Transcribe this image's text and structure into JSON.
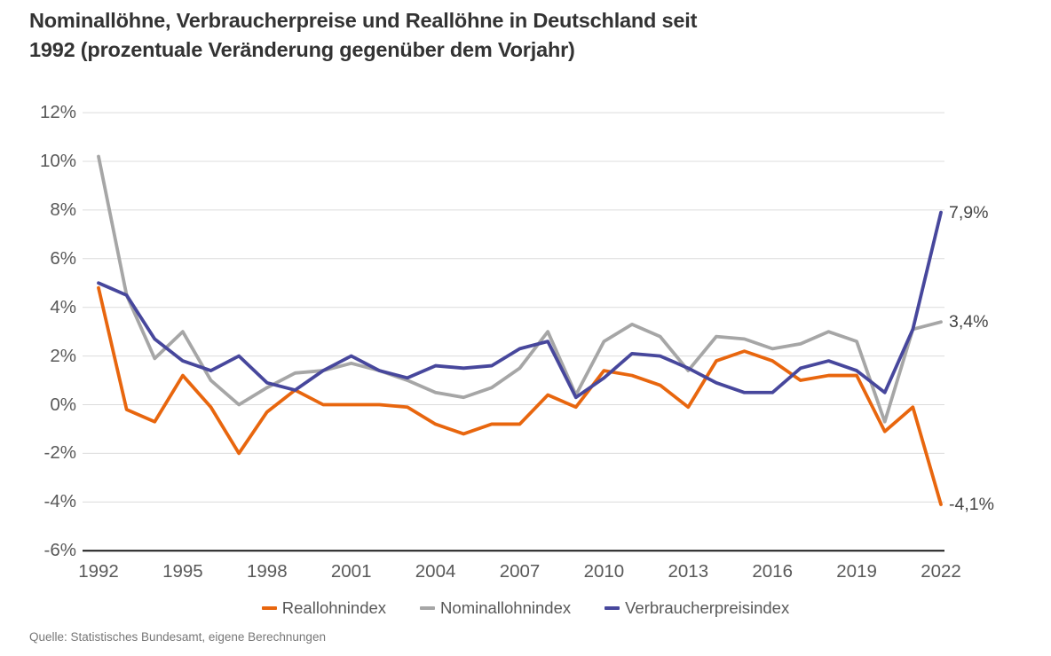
{
  "title": {
    "line1": "Nominallöhne, Verbraucherpreise und Reallöhne in Deutschland seit",
    "line2": "1992 (prozentuale Veränderung gegenüber dem Vorjahr)"
  },
  "source": "Quelle: Statistisches Bundesamt, eigene Berechnungen",
  "chart_data": {
    "type": "line",
    "x": [
      1992,
      1993,
      1994,
      1995,
      1996,
      1997,
      1998,
      1999,
      2000,
      2001,
      2002,
      2003,
      2004,
      2005,
      2006,
      2007,
      2008,
      2009,
      2010,
      2011,
      2012,
      2013,
      2014,
      2015,
      2016,
      2017,
      2018,
      2019,
      2020,
      2021,
      2022
    ],
    "series": [
      {
        "name": "Reallohnindex",
        "color": "#E8660E",
        "values": [
          4.8,
          -0.2,
          -0.7,
          1.2,
          -0.1,
          -2.0,
          -0.3,
          0.6,
          0.0,
          0.0,
          0.0,
          -0.1,
          -0.8,
          -1.2,
          -0.8,
          -0.8,
          0.4,
          -0.1,
          1.4,
          1.2,
          0.8,
          -0.1,
          1.8,
          2.2,
          1.8,
          1.0,
          1.2,
          1.2,
          -1.1,
          -0.1,
          -4.1
        ]
      },
      {
        "name": "Nominallohnindex",
        "color": "#A6A6A6",
        "values": [
          10.2,
          4.5,
          1.9,
          3.0,
          1.0,
          0.0,
          0.7,
          1.3,
          1.4,
          1.7,
          1.4,
          1.0,
          0.5,
          0.3,
          0.7,
          1.5,
          3.0,
          0.4,
          2.6,
          3.3,
          2.8,
          1.4,
          2.8,
          2.7,
          2.3,
          2.5,
          3.0,
          2.6,
          -0.7,
          3.1,
          3.4
        ]
      },
      {
        "name": "Verbraucherpreisindex",
        "color": "#47479C",
        "values": [
          5.0,
          4.5,
          2.7,
          1.8,
          1.4,
          2.0,
          0.9,
          0.6,
          1.4,
          2.0,
          1.4,
          1.1,
          1.6,
          1.5,
          1.6,
          2.3,
          2.6,
          0.3,
          1.1,
          2.1,
          2.0,
          1.5,
          0.9,
          0.5,
          0.5,
          1.5,
          1.8,
          1.4,
          0.5,
          3.1,
          7.9
        ]
      }
    ],
    "end_labels": [
      {
        "text": "7,9%",
        "value": 7.9,
        "series": "Verbraucherpreisindex"
      },
      {
        "text": "3,4%",
        "value": 3.4,
        "series": "Nominallohnindex"
      },
      {
        "text": "-4,1%",
        "value": -4.1,
        "series": "Reallohnindex"
      }
    ],
    "yticks": [
      "12%",
      "10%",
      "8%",
      "6%",
      "4%",
      "2%",
      "0%",
      "-2%",
      "-4%",
      "-6%"
    ],
    "xticks": [
      "1992",
      "1995",
      "1998",
      "2001",
      "2004",
      "2007",
      "2010",
      "2013",
      "2016",
      "2019",
      "2022"
    ],
    "ylim": [
      -6,
      12
    ],
    "xlabel": "",
    "ylabel": "",
    "grid": true,
    "legend_position": "bottom",
    "grid_color": "#DCDCDC",
    "axis_color": "#1A1A1A",
    "background": "#FFFFFF"
  }
}
